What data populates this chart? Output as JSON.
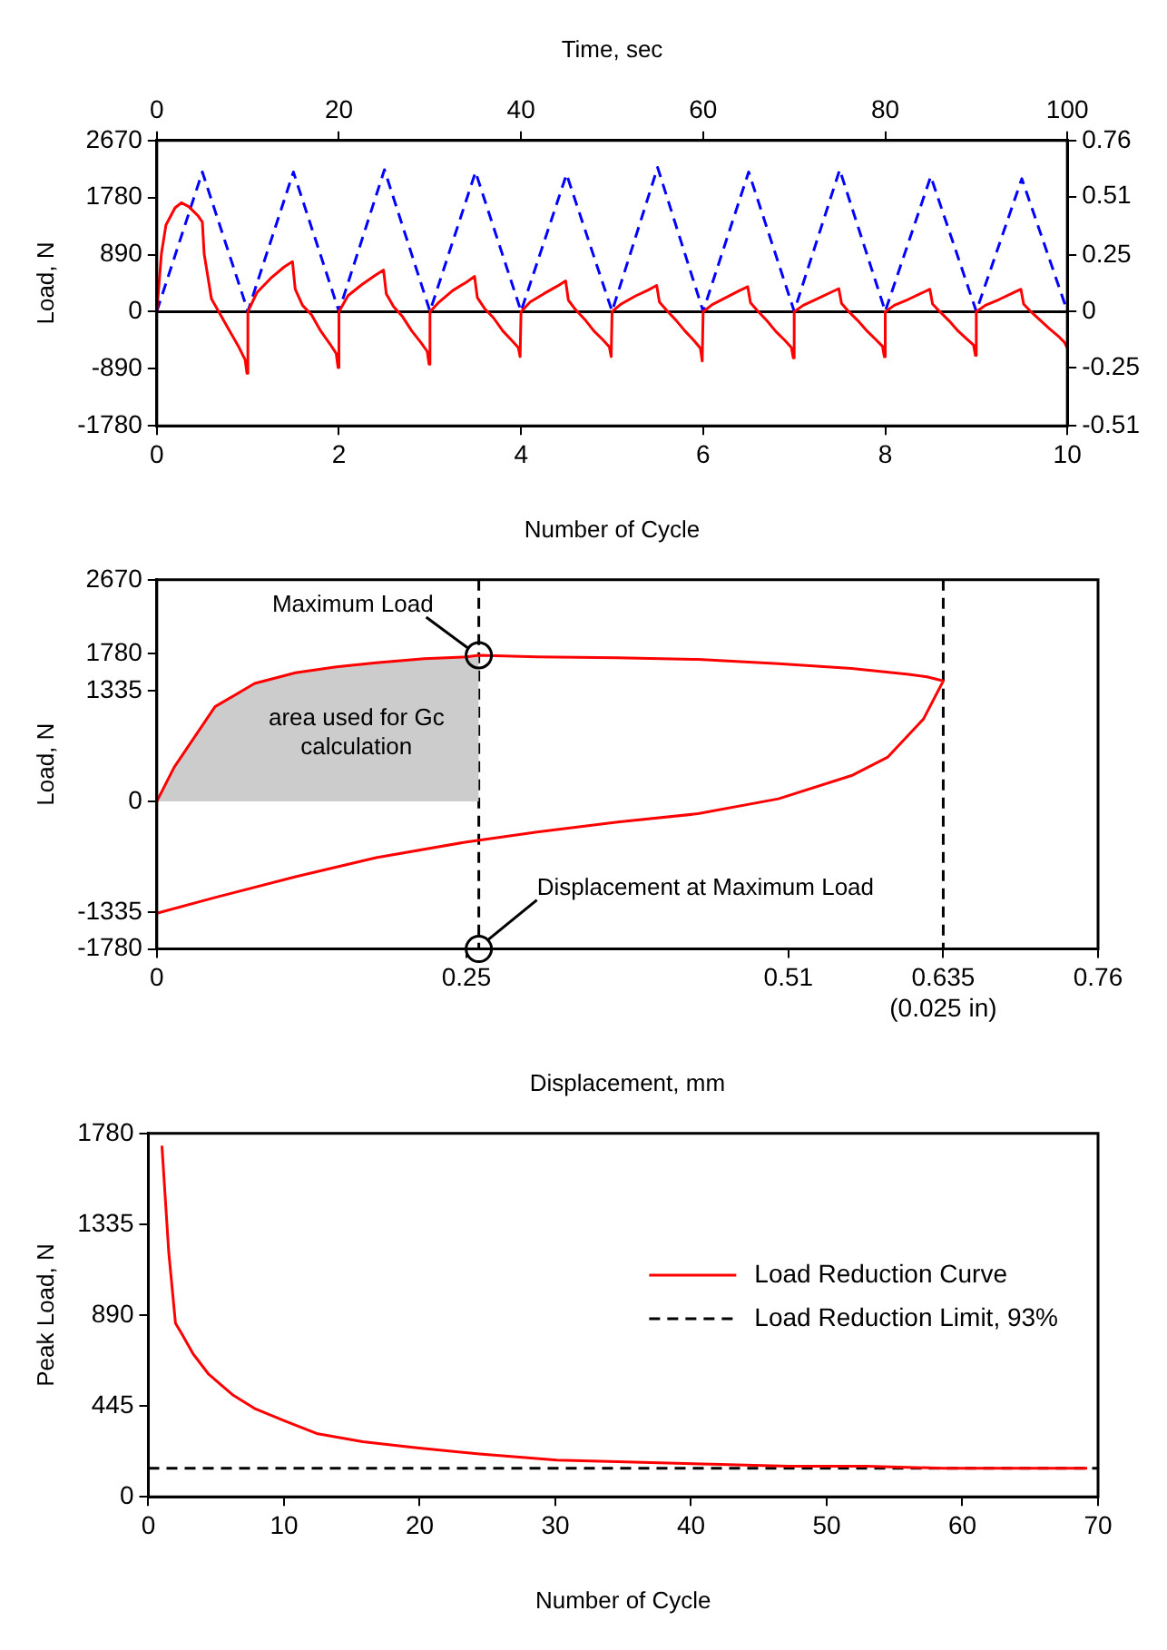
{
  "chart_data": [
    {
      "type": "line",
      "xlabel": "Number of Cycle",
      "ylabel": "Load, N",
      "x2label": "Time, sec",
      "xlim": [
        0,
        10
      ],
      "xticks": [
        0,
        2,
        4,
        6,
        8,
        10
      ],
      "x2lim": [
        0,
        100
      ],
      "x2ticks": [
        0,
        20,
        40,
        60,
        80,
        100
      ],
      "ylim": [
        -1780,
        2670
      ],
      "yticks": [
        -1780,
        -890,
        0,
        890,
        1780,
        2670
      ],
      "y2lim": [
        -0.51,
        0.76
      ],
      "y2ticks": [
        -0.51,
        -0.25,
        0,
        0.25,
        0.51,
        0.76
      ],
      "grid": false,
      "ref_lines": [
        {
          "axis": "y",
          "value": 0,
          "color": "#000000",
          "line_style": "solid"
        }
      ],
      "series": [
        {
          "color": "#ff0000",
          "x": [
            0,
            0.05,
            0.1,
            0.2,
            0.27,
            0.35,
            0.45,
            0.5,
            0.52,
            0.6,
            0.7,
            0.8,
            0.9,
            0.97,
            0.99,
            1.0,
            1.1,
            1.25,
            1.4,
            1.49,
            1.52,
            1.6,
            1.7,
            1.8,
            1.9,
            1.97,
            1.99,
            2.0,
            2.1,
            2.25,
            2.4,
            2.49,
            2.52,
            2.6,
            2.7,
            2.8,
            2.9,
            2.97,
            2.99,
            3.0,
            3.1,
            3.25,
            3.4,
            3.49,
            3.52,
            3.6,
            3.7,
            3.8,
            3.9,
            3.97,
            3.99,
            4.0,
            4.1,
            4.25,
            4.4,
            4.49,
            4.52,
            4.6,
            4.7,
            4.8,
            4.9,
            4.97,
            4.99,
            5.0,
            5.1,
            5.25,
            5.4,
            5.49,
            5.52,
            5.6,
            5.7,
            5.8,
            5.9,
            5.97,
            5.99,
            6.0,
            6.1,
            6.25,
            6.4,
            6.49,
            6.52,
            6.6,
            6.7,
            6.8,
            6.9,
            6.97,
            6.99,
            7.0,
            7.1,
            7.25,
            7.4,
            7.49,
            7.52,
            7.6,
            7.7,
            7.8,
            7.9,
            7.97,
            7.99,
            8.0,
            8.1,
            8.25,
            8.4,
            8.49,
            8.52,
            8.6,
            8.7,
            8.8,
            8.9,
            8.97,
            8.99,
            9.0,
            9.1,
            9.25,
            9.4,
            9.49,
            9.52,
            9.6,
            9.7,
            9.8,
            9.9,
            9.97,
            10.0
          ],
          "values": [
            0,
            900,
            1350,
            1620,
            1700,
            1640,
            1500,
            1400,
            900,
            200,
            -50,
            -300,
            -550,
            -750,
            -960,
            0,
            300,
            520,
            700,
            780,
            350,
            100,
            -50,
            -300,
            -500,
            -650,
            -870,
            0,
            250,
            420,
            570,
            650,
            280,
            80,
            -80,
            -300,
            -480,
            -620,
            -820,
            0,
            150,
            330,
            460,
            550,
            220,
            50,
            -100,
            -300,
            -450,
            -560,
            -700,
            0,
            150,
            280,
            400,
            480,
            180,
            30,
            -120,
            -300,
            -440,
            -550,
            -700,
            0,
            120,
            240,
            340,
            410,
            150,
            20,
            -130,
            -300,
            -450,
            -570,
            -770,
            0,
            110,
            220,
            330,
            390,
            140,
            10,
            -140,
            -310,
            -450,
            -560,
            -720,
            0,
            100,
            200,
            300,
            360,
            130,
            0,
            -140,
            -300,
            -440,
            -540,
            -700,
            0,
            100,
            190,
            290,
            350,
            120,
            0,
            -140,
            -300,
            -430,
            -520,
            -680,
            0,
            100,
            190,
            290,
            350,
            120,
            0,
            -130,
            -260,
            -380,
            -480,
            -570
          ]
        },
        {
          "color": "#0000ff",
          "axis": "y2",
          "line_style": "dashed",
          "x": [
            0,
            0.5,
            1,
            1.5,
            2,
            2.5,
            3,
            3.5,
            4,
            4.5,
            5,
            5.5,
            6,
            6.5,
            7,
            7.5,
            8,
            8.5,
            9,
            9.5,
            10
          ],
          "values": [
            0,
            0.62,
            0,
            0.62,
            0,
            0.63,
            0,
            0.62,
            0,
            0.61,
            0,
            0.64,
            0,
            0.62,
            0,
            0.63,
            0,
            0.6,
            0,
            0.59,
            0
          ]
        }
      ]
    },
    {
      "type": "line",
      "xlabel": "Displacement, mm",
      "ylabel": "Load, N",
      "xlim": [
        0,
        0.76
      ],
      "xticks": [
        0,
        0.25,
        0.51,
        {
          "value": 0.635,
          "label": "0.635\n(0.025 in)"
        },
        0.76
      ],
      "ylim": [
        -1780,
        2670
      ],
      "yticks": [
        -1780,
        -1335,
        0,
        1335,
        1780,
        2670
      ],
      "grid": false,
      "ref_lines": [
        {
          "axis": "x",
          "value": 0.26,
          "color": "#000000",
          "line_style": "dashed"
        },
        {
          "axis": "x",
          "value": 0.635,
          "color": "#000000",
          "line_style": "dashed"
        }
      ],
      "annotations": [
        {
          "text": "Maximum Load",
          "x": 0.26,
          "y": 1760
        },
        "area used for Gc calculation",
        {
          "text": "Displacement at Maximum Load",
          "x": 0.26,
          "y": -1780
        }
      ],
      "series": [
        {
          "type": "area",
          "color": "#cccccc",
          "x": [
            0,
            0.014,
            0.047,
            0.079,
            0.112,
            0.145,
            0.177,
            0.216,
            0.25,
            0.26
          ],
          "values": [
            0,
            410,
            1140,
            1420,
            1550,
            1620,
            1670,
            1720,
            1740,
            1760
          ]
        },
        {
          "color": "#ff0000",
          "x": [
            0,
            0.014,
            0.047,
            0.079,
            0.112,
            0.145,
            0.177,
            0.216,
            0.25,
            0.26,
            0.307,
            0.372,
            0.437,
            0.502,
            0.561,
            0.607,
            0.622,
            0.635,
            0.619,
            0.59,
            0.561,
            0.502,
            0.437,
            0.372,
            0.307,
            0.25,
            0.177,
            0.112,
            0.047,
            0
          ],
          "values": [
            0,
            410,
            1140,
            1420,
            1550,
            1620,
            1670,
            1720,
            1740,
            1760,
            1740,
            1730,
            1710,
            1660,
            1600,
            1530,
            1500,
            1450,
            990,
            530,
            310,
            30,
            -150,
            -250,
            -370,
            -490,
            -680,
            -910,
            -1160,
            -1350
          ]
        }
      ]
    },
    {
      "type": "line",
      "xlabel": "Number of Cycle",
      "ylabel": "Peak Load, N",
      "xlim": [
        0,
        70
      ],
      "xticks": [
        0,
        10,
        20,
        30,
        40,
        50,
        60,
        70
      ],
      "ylim": [
        0,
        1780
      ],
      "yticks": [
        0,
        445,
        890,
        1335,
        1780
      ],
      "grid": false,
      "legend": "right",
      "series": [
        {
          "name": "Load Reduction Curve",
          "color": "#ff0000",
          "x": [
            1,
            1.5,
            2,
            2.45,
            3.3,
            4.45,
            6.2,
            7.9,
            10.1,
            12.4,
            15.8,
            19.8,
            24.4,
            30.1,
            35.8,
            41.5,
            47.2,
            52.9,
            58.6,
            64.3,
            69.2
          ],
          "values": [
            1720,
            1200,
            850,
            800,
            700,
            600,
            500,
            430,
            370,
            310,
            270,
            240,
            210,
            180,
            170,
            160,
            150,
            150,
            140,
            140,
            140
          ]
        },
        {
          "name": "Load Reduction Limit, 93%",
          "color": "#000000",
          "line_style": "dashed",
          "x": [
            0,
            70
          ],
          "values": [
            140,
            140
          ]
        }
      ]
    }
  ]
}
